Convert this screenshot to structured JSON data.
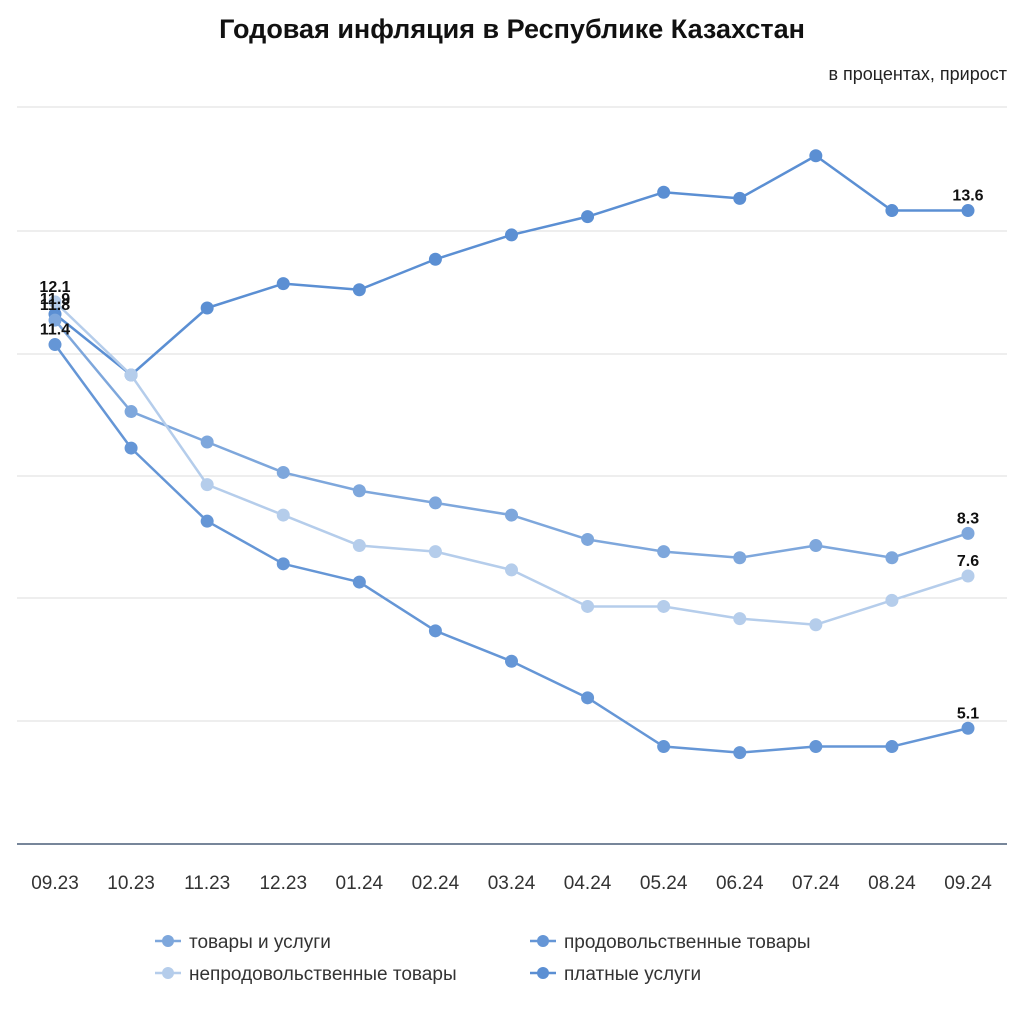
{
  "chart_data": {
    "type": "line",
    "title": "Годовая инфляция в Республике Казахстан",
    "subtitle": "в процентах, прирост",
    "xlabel": "",
    "ylabel": "",
    "ylim": [
      3.2,
      15.3
    ],
    "grid": true,
    "legend_position": "bottom",
    "categories": [
      "09.23",
      "10.23",
      "11.23",
      "12.23",
      "01.24",
      "02.24",
      "03.24",
      "04.24",
      "05.24",
      "06.24",
      "07.24",
      "08.24",
      "09.24"
    ],
    "series": [
      {
        "name": "платные услуги",
        "color": "#5b8fd3",
        "values": [
          11.9,
          10.9,
          12.0,
          12.4,
          12.3,
          12.8,
          13.2,
          13.5,
          13.9,
          13.8,
          14.5,
          13.6,
          13.6
        ],
        "labels": [
          {
            "index": 0,
            "text": "11.9"
          },
          {
            "index": 12,
            "text": "13.6"
          }
        ]
      },
      {
        "name": "товары и услуги",
        "color": "#7ea7dc",
        "values": [
          11.8,
          10.3,
          9.8,
          9.3,
          9.0,
          8.8,
          8.6,
          8.2,
          8.0,
          7.9,
          8.1,
          7.9,
          8.3
        ],
        "labels": [
          {
            "index": 0,
            "text": "11.8"
          },
          {
            "index": 12,
            "text": "8.3"
          }
        ]
      },
      {
        "name": "непродовольственные товары",
        "color": "#b5cdeb",
        "values": [
          12.1,
          10.9,
          9.1,
          8.6,
          8.1,
          8.0,
          7.7,
          7.1,
          7.1,
          6.9,
          6.8,
          7.2,
          7.6
        ],
        "labels": [
          {
            "index": 0,
            "text": "12.1"
          },
          {
            "index": 12,
            "text": "7.6"
          }
        ]
      },
      {
        "name": "продовольственные товары",
        "color": "#6596d6",
        "values": [
          11.4,
          9.7,
          8.5,
          7.8,
          7.5,
          6.7,
          6.2,
          5.6,
          4.8,
          4.7,
          4.8,
          4.8,
          5.1
        ],
        "labels": [
          {
            "index": 0,
            "text": "11.4"
          },
          {
            "index": 12,
            "text": "5.1"
          }
        ]
      }
    ],
    "legend": [
      {
        "name": "товары и услуги",
        "color": "#7ea7dc"
      },
      {
        "name": "продовольственные товары",
        "color": "#6596d6"
      },
      {
        "name": "непродовольственные товары",
        "color": "#b5cdeb"
      },
      {
        "name": "платные услуги",
        "color": "#5b8fd3"
      }
    ]
  }
}
